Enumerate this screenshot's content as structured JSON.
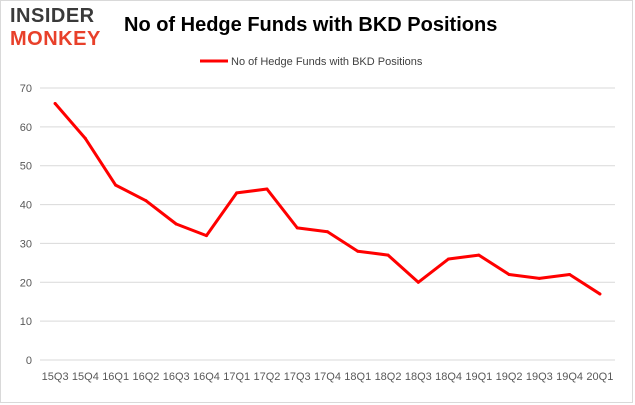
{
  "header": {
    "logo_top": "INSIDER",
    "logo_bottom": "MONKEY",
    "title": "No of Hedge Funds with BKD Positions"
  },
  "colors": {
    "series": "#ff0000",
    "logo_dark": "#3a3a3a",
    "logo_accent": "#e8402a",
    "grid": "#d9d9d9"
  },
  "chart_data": {
    "type": "line",
    "title": "No of Hedge Funds with BKD Positions",
    "xlabel": "",
    "ylabel": "",
    "categories": [
      "15Q3",
      "15Q4",
      "16Q1",
      "16Q2",
      "16Q3",
      "16Q4",
      "17Q1",
      "17Q2",
      "17Q3",
      "17Q4",
      "18Q1",
      "18Q2",
      "18Q3",
      "18Q4",
      "19Q1",
      "19Q2",
      "19Q3",
      "19Q4",
      "20Q1"
    ],
    "series": [
      {
        "name": "No of Hedge Funds with BKD Positions",
        "values": [
          66,
          57,
          45,
          41,
          35,
          32,
          43,
          44,
          34,
          33,
          28,
          27,
          20,
          26,
          27,
          22,
          21,
          22,
          17
        ]
      }
    ],
    "ylim": [
      0,
      70
    ],
    "yticks": [
      0,
      10,
      20,
      30,
      40,
      50,
      60,
      70
    ],
    "grid": true,
    "legend": "top-center"
  }
}
